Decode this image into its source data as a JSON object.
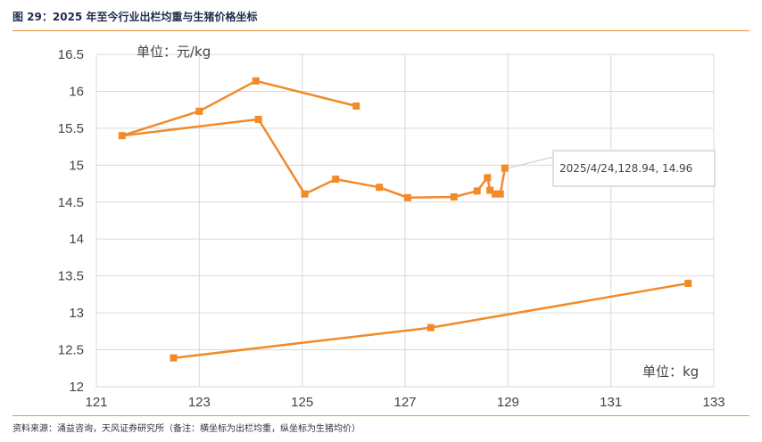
{
  "header": {
    "title": "图 29：2025 年至今行业出栏均重与生猪价格坐标"
  },
  "footer": {
    "source": "资料来源：涌益咨询，天风证券研究所（备注：横坐标为出栏均重，纵坐标为生猪均价）"
  },
  "colors": {
    "accent": "#E7963A",
    "series": "#F28A28",
    "grid": "#D9D9D9",
    "text": "#444444"
  },
  "chart_data": {
    "type": "line",
    "title": "",
    "ylabel": "单位：元/kg",
    "xlabel": "单位：kg",
    "xlim": [
      121,
      133
    ],
    "ylim": [
      12,
      16.5
    ],
    "x_ticks": [
      "121",
      "123",
      "125",
      "127",
      "129",
      "131",
      "133"
    ],
    "y_ticks": [
      "12",
      "12.5",
      "13",
      "13.5",
      "14",
      "14.5",
      "15",
      "15.5",
      "16",
      "16.5"
    ],
    "grid": true,
    "series": [
      {
        "x": [
          126.05,
          124.1,
          123.0,
          121.5,
          124.15,
          125.05,
          125.65,
          126.5,
          127.05,
          127.95,
          128.4,
          128.6,
          128.65,
          128.75,
          128.85,
          128.94
        ],
        "y": [
          15.8,
          16.14,
          15.73,
          15.4,
          15.62,
          14.61,
          14.81,
          14.7,
          14.56,
          14.57,
          14.65,
          14.83,
          14.66,
          14.61,
          14.61,
          14.96
        ]
      },
      {
        "x": [
          122.5,
          127.5,
          132.5
        ],
        "y": [
          12.39,
          12.8,
          13.4
        ]
      }
    ],
    "annotation": {
      "text": "2025/4/24,128.94, 14.96",
      "x": 128.94,
      "y": 14.96
    }
  }
}
